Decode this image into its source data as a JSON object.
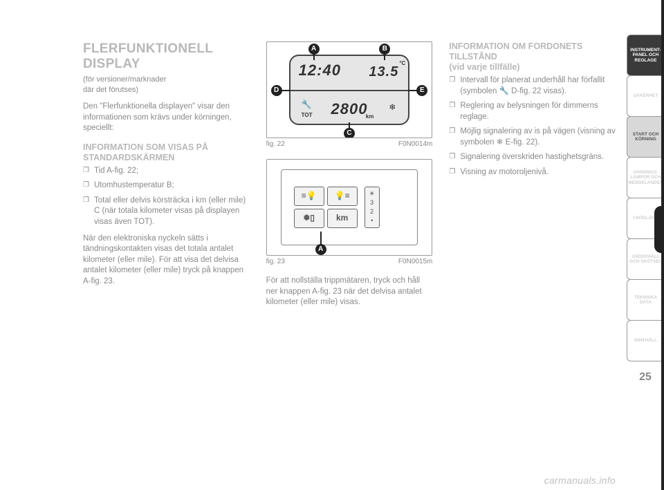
{
  "page_number": "25",
  "watermark": "carmanuals.info",
  "col1": {
    "h1": "FLERFUNKTIONELL DISPLAY",
    "sub1": "(för versioner/marknader",
    "sub2": "där det förutses)",
    "p1": "Den \"Flerfunktionella displayen\" visar den informationen som krävs under körningen, speciellt:",
    "h2": "INFORMATION SOM VISAS PÅ STANDARDSKÄRMEN",
    "li1": "Tid A-fig. 22;",
    "li2": "Utomhustemperatur B;",
    "li3": "Total eller delvis körsträcka i km (eller mile) C (när totala kilometer visas på displayen visas även TOT).",
    "p2": "När den elektroniska nyckeln sätts i tändningskontakten visas det totala antalet kilometer (eller mile). För att visa det delvisa antalet kilometer (eller mile) tryck på knappen A-fig. 23."
  },
  "fig22": {
    "label": "fig. 22",
    "code": "F0N0014m",
    "time": "12:40",
    "temp": "13.5",
    "deg": "°C",
    "odo": "2800",
    "tot": "TOT",
    "km": "km",
    "callouts": {
      "A": "A",
      "B": "B",
      "C": "C",
      "D": "D",
      "E": "E"
    }
  },
  "fig23": {
    "label": "fig. 23",
    "code": "F0N0015m",
    "btn_km": "km",
    "callout_A": "A"
  },
  "col2": {
    "p1": "För att nollställa trippmätaren, tryck och håll ner knappen A-fig. 23 när det delvisa antalet kilometer (eller mile) visas."
  },
  "col3": {
    "h2a": "INFORMATION OM FORDONETS TILLSTÅND",
    "h2b": "(vid varje tillfälle)",
    "li1": "Intervall för planerat underhåll har förfallit (symbolen 🔧 D-fig. 22 visas).",
    "li2": "Reglering av belysningen för dimmerns reglage.",
    "li3": "Möjlig signalering av is på vägen (visning av symbolen ❄ E-fig. 22).",
    "li4": "Signalering överskriden hastighetsgräns.",
    "li5": "Visning av motoroljenivå."
  },
  "tabs": [
    {
      "label": "INSTRUMENT-PANEL OCH REGLAGE",
      "active": true
    },
    {
      "label": "SÄKERHET",
      "active": false
    },
    {
      "label": "START OCH KÖRNING",
      "active": false,
      "shaded": true
    },
    {
      "label": "VARNINGS-LAMPOR OCH MEDDELANDEN",
      "active": false
    },
    {
      "label": "I NÖDLÄGE",
      "active": false
    },
    {
      "label": "UNDERHÅLL OCH SKÖTSEL",
      "active": false
    },
    {
      "label": "TEKNISKA DATA",
      "active": false
    },
    {
      "label": "INNEHÅLL",
      "active": false
    }
  ],
  "colors": {
    "page_bg": "#ffffff",
    "text_muted": "#888888",
    "heading_gray": "#b8b8b8",
    "tab_active_bg": "#3a3a3a",
    "callout_bg": "#222222",
    "display_bg": "#e6e6e6"
  }
}
